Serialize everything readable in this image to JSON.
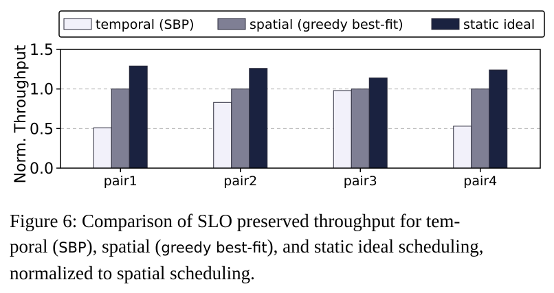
{
  "chart_data": {
    "type": "bar",
    "categories": [
      "pair1",
      "pair2",
      "pair3",
      "pair4"
    ],
    "series": [
      {
        "name": "temporal (SBP)",
        "color": "#f2f1fa",
        "values": [
          0.51,
          0.83,
          0.98,
          0.53
        ]
      },
      {
        "name": "spatial (greedy best-fit)",
        "color": "#7f7f94",
        "values": [
          1.0,
          1.0,
          1.0,
          1.0
        ]
      },
      {
        "name": "static ideal",
        "color": "#1a2240",
        "values": [
          1.29,
          1.26,
          1.14,
          1.24
        ]
      }
    ],
    "ylabel": "Norm. Throughput",
    "ylim": [
      0,
      1.5
    ],
    "yticks": [
      "0.0",
      "0.5",
      "1.0",
      "1.5"
    ],
    "ytick_values": [
      0,
      0.5,
      1.0,
      1.5
    ],
    "grid": "horizontal dashed",
    "legend_position": "top"
  },
  "caption": {
    "prefix": "Figure 6: Comparison of SLO preserved throughput for tem-",
    "line2_a": "poral (",
    "line2_sbp": "SBP",
    "line2_b": "), spatial (",
    "line2_gbf": "greedy best-fit",
    "line2_c": "), and static ideal scheduling,",
    "line3": "normalized to spatial scheduling."
  }
}
